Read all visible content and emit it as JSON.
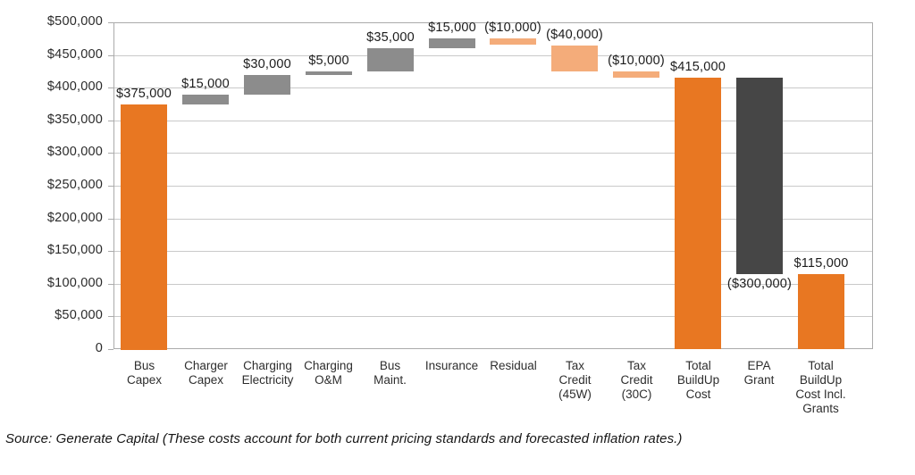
{
  "chart_data": {
    "type": "bar",
    "subtype": "waterfall",
    "title": "",
    "grid": true,
    "legend": false,
    "y_axis": {
      "min": 0,
      "max": 500000,
      "step": 50000,
      "tick_labels": [
        "$500,000",
        "$450,000",
        "$400,000",
        "$350,000",
        "$300,000",
        "$250,000",
        "$200,000",
        "$150,000",
        "$100,000",
        "$50,000",
        "0"
      ]
    },
    "categories": [
      "Bus Capex",
      "Charger Capex",
      "Charging Electricity",
      "Charging O&M",
      "Bus Maint.",
      "Insurance",
      "Residual",
      "Tax Credit (45W)",
      "Tax Credit (30C)",
      "Total BuildUp Cost",
      "EPA Grant",
      "Total BuildUp Cost Incl. Grants"
    ],
    "category_axis_lines": [
      "Bus\nCapex",
      "Charger\nCapex",
      "Charging\nElectricity",
      "Charging\nO&M",
      "Bus\nMaint.",
      "Insurance",
      "Residual",
      "Tax\nCredit\n(45W)",
      "Tax\nCredit\n(30C)",
      "Total\nBuildUp\nCost",
      "EPA\nGrant",
      "Total\nBuildUp\nCost Incl.\nGrants"
    ],
    "bars": [
      {
        "category": "Bus Capex",
        "value": 375000,
        "start": 0,
        "end": 375000,
        "label": "$375,000",
        "role": "total",
        "label_side": "above"
      },
      {
        "category": "Charger Capex",
        "value": 15000,
        "start": 375000,
        "end": 390000,
        "label": "$15,000",
        "role": "increase",
        "label_side": "above"
      },
      {
        "category": "Charging Electricity",
        "value": 30000,
        "start": 390000,
        "end": 420000,
        "label": "$30,000",
        "role": "increase",
        "label_side": "above"
      },
      {
        "category": "Charging O&M",
        "value": 5000,
        "start": 420000,
        "end": 425000,
        "label": "$5,000",
        "role": "increase",
        "label_side": "above"
      },
      {
        "category": "Bus Maint.",
        "value": 35000,
        "start": 425000,
        "end": 460000,
        "label": "$35,000",
        "role": "increase",
        "label_side": "above"
      },
      {
        "category": "Insurance",
        "value": 15000,
        "start": 460000,
        "end": 475000,
        "label": "$15,000",
        "role": "increase",
        "label_side": "above"
      },
      {
        "category": "Residual",
        "value": -10000,
        "start": 475000,
        "end": 465000,
        "label": "($10,000)",
        "role": "decrease",
        "label_side": "above"
      },
      {
        "category": "Tax Credit (45W)",
        "value": -40000,
        "start": 465000,
        "end": 425000,
        "label": "($40,000)",
        "role": "decrease",
        "label_side": "above"
      },
      {
        "category": "Tax Credit (30C)",
        "value": -10000,
        "start": 425000,
        "end": 415000,
        "label": "($10,000)",
        "role": "decrease",
        "label_side": "above"
      },
      {
        "category": "Total BuildUp Cost",
        "value": 415000,
        "start": 0,
        "end": 415000,
        "label": "$415,000",
        "role": "total",
        "label_side": "above"
      },
      {
        "category": "EPA Grant",
        "value": -300000,
        "start": 415000,
        "end": 115000,
        "label": "($300,000)",
        "role": "grant",
        "label_side": "below"
      },
      {
        "category": "Total BuildUp Cost Incl. Grants",
        "value": 115000,
        "start": 0,
        "end": 115000,
        "label": "$115,000",
        "role": "total",
        "label_side": "above"
      }
    ],
    "colors": {
      "total": "#e87722",
      "increase": "#8c8c8c",
      "decrease": "#f4ac7a",
      "grant": "#464646",
      "gridline": "#c9c9c9",
      "plot_border": "#ababab"
    }
  },
  "source_note": "Source: Generate Capital (These costs account for both current pricing standards and forecasted inflation rates.)"
}
